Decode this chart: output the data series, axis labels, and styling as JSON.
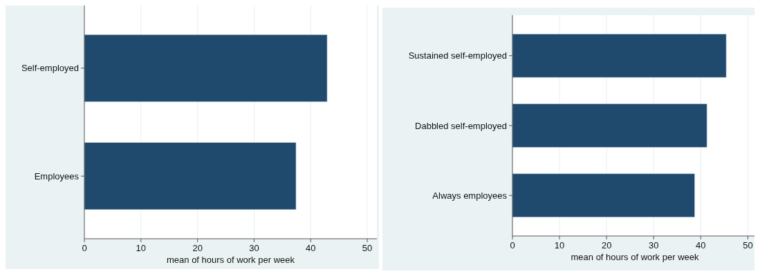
{
  "chart_data": [
    {
      "type": "bar",
      "orientation": "horizontal",
      "categories": [
        "Self-employed",
        "Employees"
      ],
      "values": [
        42.9,
        37.4
      ],
      "color": "#1f4a6e",
      "xlabel": "mean of hours of work per week",
      "xlim": [
        0,
        51.7
      ],
      "xticks": [
        0,
        10,
        20,
        30,
        40,
        50
      ],
      "grid": "x"
    },
    {
      "type": "bar",
      "orientation": "horizontal",
      "categories": [
        "Sustained self-employed",
        "Dabbled self-employed",
        "Always employees"
      ],
      "values": [
        45.4,
        41.3,
        38.7
      ],
      "color": "#1f4a6e",
      "xlabel": "mean of hours of work per week",
      "xlim": [
        0,
        52
      ],
      "xticks": [
        0,
        10,
        20,
        30,
        40,
        50
      ],
      "grid": "x"
    }
  ]
}
